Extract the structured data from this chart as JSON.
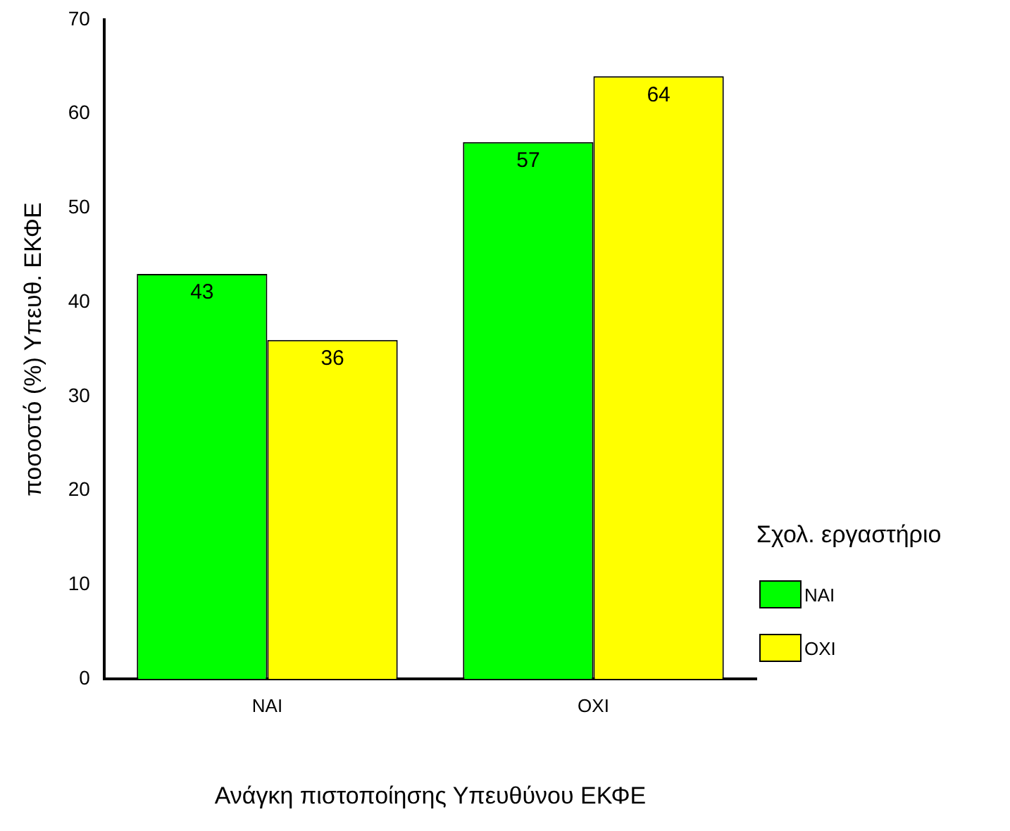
{
  "chart_data": {
    "type": "bar",
    "xlabel": "Ανάγκη πιστοποίησης Υπευθύνου ΕΚΦΕ",
    "ylabel": "ποσοστό (%) Υπευθ. ΕΚΦΕ",
    "legend_title": "Σχολ. εργαστήριο",
    "categories": [
      "ΝΑΙ",
      "ΟΧΙ"
    ],
    "series": [
      {
        "name": "ΝΑΙ",
        "color": "#00ff00",
        "values": [
          43,
          57
        ]
      },
      {
        "name": "ΟΧΙ",
        "color": "#ffff00",
        "values": [
          36,
          64
        ]
      }
    ],
    "ylim": [
      0,
      70
    ],
    "yticks": [
      0,
      10,
      20,
      30,
      40,
      50,
      60,
      70
    ],
    "grid": false,
    "legend": "bottom right",
    "data_labels": true
  }
}
